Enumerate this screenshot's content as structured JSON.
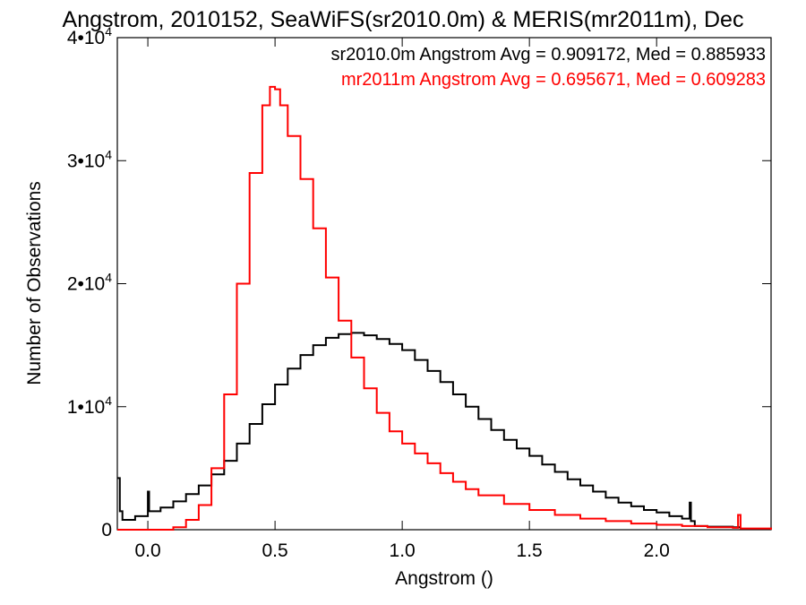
{
  "chart_data": {
    "type": "line",
    "title": "Angstrom, 2010152, SeaWiFS(sr2010.0m) & MERIS(mr2011m), Dec",
    "xlabel": "Angstrom ()",
    "ylabel": "Number of Observations",
    "xlim": [
      -0.12,
      2.45
    ],
    "ylim": [
      0,
      40000
    ],
    "x_ticks": [
      0.0,
      0.5,
      1.0,
      1.5,
      2.0
    ],
    "x_tick_labels": [
      "0.0",
      "0.5",
      "1.0",
      "1.5",
      "2.0"
    ],
    "y_ticks": [
      {
        "value": 0,
        "base": "0",
        "exp": ""
      },
      {
        "value": 10000,
        "base": "1•10",
        "exp": "4"
      },
      {
        "value": 20000,
        "base": "2•10",
        "exp": "4"
      },
      {
        "value": 30000,
        "base": "3•10",
        "exp": "4"
      },
      {
        "value": 40000,
        "base": "4•10",
        "exp": "4"
      }
    ],
    "legend_position": "top-right",
    "grid": false,
    "annotations": [
      {
        "text": "sr2010.0m Angstrom Avg = 0.909172, Med = 0.885933",
        "color": "#000000"
      },
      {
        "text": "mr2011m Angstrom Avg = 0.695671, Med = 0.609283",
        "color": "#ff0000"
      }
    ],
    "series": [
      {
        "color": "#000000",
        "x": [
          -0.12,
          -0.11,
          -0.1,
          -0.05,
          0.0,
          0.0,
          0.005,
          0.05,
          0.1,
          0.15,
          0.2,
          0.25,
          0.3,
          0.35,
          0.4,
          0.45,
          0.5,
          0.55,
          0.6,
          0.65,
          0.7,
          0.75,
          0.8,
          0.85,
          0.9,
          0.95,
          1.0,
          1.05,
          1.1,
          1.15,
          1.2,
          1.25,
          1.3,
          1.35,
          1.4,
          1.45,
          1.5,
          1.55,
          1.6,
          1.65,
          1.7,
          1.75,
          1.8,
          1.85,
          1.9,
          1.95,
          2.0,
          2.05,
          2.1,
          2.13,
          2.13,
          2.135,
          2.15,
          2.2,
          2.3,
          2.33
        ],
        "y": [
          4200,
          1500,
          800,
          1100,
          1500,
          3100,
          1500,
          1800,
          2300,
          2900,
          3600,
          4500,
          5600,
          7000,
          8600,
          10200,
          11800,
          13100,
          14200,
          15000,
          15600,
          15900,
          16000,
          15800,
          15500,
          15100,
          14600,
          13800,
          12900,
          12000,
          11000,
          10000,
          9000,
          8100,
          7300,
          6600,
          6000,
          5300,
          4700,
          4100,
          3600,
          3100,
          2600,
          2200,
          1900,
          1600,
          1400,
          1100,
          900,
          900,
          2200,
          700,
          300,
          250,
          200,
          200
        ]
      },
      {
        "color": "#ff0000",
        "x": [
          -0.12,
          0.07,
          0.1,
          0.15,
          0.2,
          0.25,
          0.3,
          0.35,
          0.4,
          0.45,
          0.48,
          0.5,
          0.52,
          0.55,
          0.6,
          0.65,
          0.7,
          0.75,
          0.8,
          0.85,
          0.9,
          0.95,
          1.0,
          1.05,
          1.1,
          1.15,
          1.2,
          1.25,
          1.3,
          1.4,
          1.5,
          1.6,
          1.7,
          1.8,
          1.9,
          2.0,
          2.1,
          2.2,
          2.3,
          2.32,
          2.32,
          2.33,
          2.45
        ],
        "y": [
          0,
          0,
          200,
          800,
          2000,
          5000,
          11000,
          20000,
          29000,
          34500,
          36000,
          35800,
          34500,
          32000,
          28500,
          24500,
          20500,
          17000,
          14000,
          11500,
          9500,
          8000,
          7000,
          6200,
          5400,
          4600,
          3900,
          3300,
          2800,
          2100,
          1600,
          1200,
          900,
          700,
          500,
          400,
          300,
          200,
          150,
          150,
          1200,
          100,
          0
        ]
      }
    ]
  }
}
